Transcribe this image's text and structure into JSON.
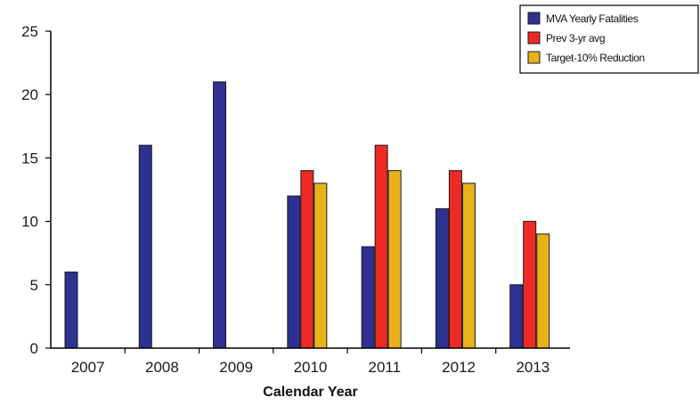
{
  "chart_data": {
    "type": "bar",
    "title": "",
    "xlabel": "Calendar Year",
    "ylabel": "",
    "categories": [
      "2007",
      "2008",
      "2009",
      "2010",
      "2011",
      "2012",
      "2013"
    ],
    "series": [
      {
        "name": "MVA Yearly Fatalities",
        "color": "#2e3192",
        "values": [
          6,
          16,
          21,
          12,
          8,
          11,
          5
        ]
      },
      {
        "name": "Prev 3-yr avg",
        "color": "#ee2a24",
        "values": [
          null,
          null,
          null,
          14,
          16,
          14,
          10
        ]
      },
      {
        "name": "Target-10% Reduction",
        "color": "#e8b21a",
        "values": [
          null,
          null,
          null,
          13,
          14,
          13,
          9
        ]
      }
    ],
    "ylim": [
      0,
      25
    ],
    "yticks": [
      0,
      5,
      10,
      15,
      20,
      25
    ],
    "grid": false,
    "legend": "top-right"
  }
}
